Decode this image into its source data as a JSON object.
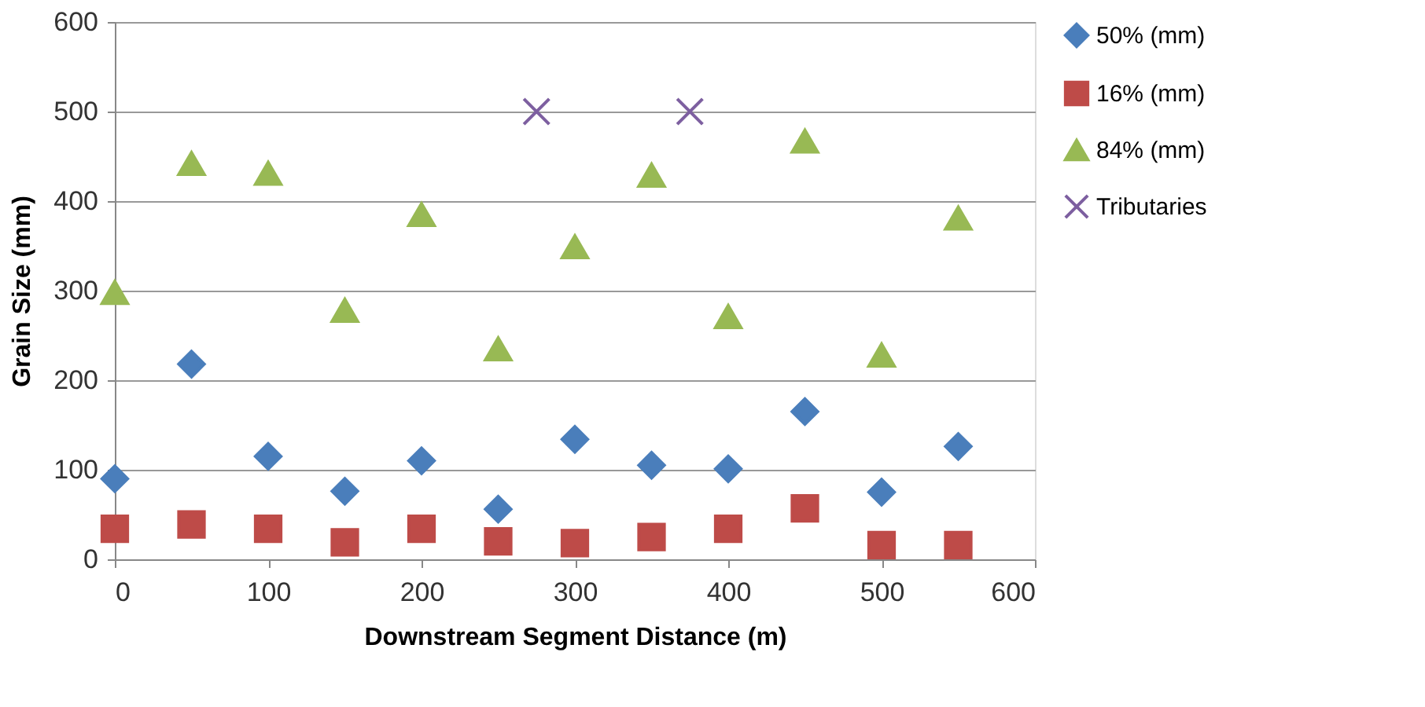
{
  "chart_data": {
    "type": "scatter",
    "xlabel": "Downstream Segment Distance (m)",
    "ylabel": "Grain Size (mm)",
    "xlim": [
      0,
      600
    ],
    "xticks": [
      0,
      100,
      200,
      300,
      400,
      500,
      600
    ],
    "ylim": [
      0,
      600
    ],
    "yticks": [
      0,
      100,
      200,
      300,
      400,
      500,
      600
    ],
    "grid": "y",
    "legend": "right",
    "series": [
      {
        "name": "50% (mm)",
        "color": "#4a7ebb",
        "marker": "diamond",
        "x": [
          0,
          50,
          100,
          150,
          200,
          250,
          300,
          350,
          400,
          450,
          500,
          550
        ],
        "values": [
          90,
          218,
          115,
          76,
          110,
          56,
          134,
          105,
          101,
          165,
          75,
          126
        ]
      },
      {
        "name": "16% (mm)",
        "color": "#be4b48",
        "marker": "square",
        "x": [
          0,
          50,
          100,
          150,
          200,
          250,
          300,
          350,
          400,
          450,
          500,
          550
        ],
        "values": [
          34,
          39,
          34,
          19,
          34,
          20,
          18,
          25,
          34,
          57,
          16,
          16
        ]
      },
      {
        "name": "84% (mm)",
        "color": "#98b954",
        "marker": "triangle",
        "x": [
          0,
          50,
          100,
          150,
          200,
          250,
          300,
          350,
          400,
          450,
          500,
          550
        ],
        "values": [
          298,
          442,
          431,
          278,
          385,
          235,
          349,
          429,
          271,
          467,
          228,
          381
        ]
      },
      {
        "name": "Tributaries",
        "color": "#7d5fa0",
        "marker": "cross",
        "x": [
          275,
          375
        ],
        "values": [
          500,
          500
        ]
      }
    ]
  }
}
